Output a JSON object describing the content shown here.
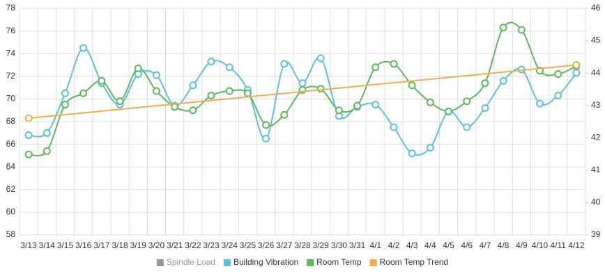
{
  "chart_data": {
    "type": "line",
    "categories": [
      "3/13",
      "3/14",
      "3/15",
      "3/16",
      "3/17",
      "3/18",
      "3/19",
      "3/20",
      "3/21",
      "3/22",
      "3/23",
      "3/24",
      "3/25",
      "3/26",
      "3/27",
      "3/28",
      "3/29",
      "3/30",
      "3/31",
      "4/1",
      "4/2",
      "4/3",
      "4/4",
      "4/5",
      "4/6",
      "4/7",
      "4/8",
      "4/9",
      "4/10",
      "4/11",
      "4/12"
    ],
    "ylim": [
      58,
      78
    ],
    "yticks": [
      58,
      60,
      62,
      64,
      66,
      68,
      70,
      72,
      74,
      76,
      78
    ],
    "y2lim": [
      39,
      46
    ],
    "y2ticks": [
      39,
      40,
      41,
      42,
      43,
      44,
      45,
      46
    ],
    "grid": true,
    "legend": "bottom",
    "series": [
      {
        "name": "Spindle Load",
        "color": "#999999",
        "axis": "y2",
        "hidden": true,
        "values": [
          null,
          null,
          null,
          null,
          null,
          null,
          null,
          null,
          null,
          null,
          null,
          null,
          null,
          null,
          null,
          null,
          null,
          null,
          null,
          null,
          null,
          null,
          null,
          null,
          null,
          null,
          null,
          null,
          null,
          null,
          null
        ]
      },
      {
        "name": "Building Vibration",
        "color": "#5bc0de",
        "values": [
          66.8,
          67.0,
          70.5,
          74.5,
          71.4,
          69.5,
          72.2,
          72.1,
          69.4,
          71.2,
          73.3,
          72.8,
          70.8,
          66.5,
          73.1,
          71.4,
          73.6,
          68.5,
          69.3,
          69.5,
          67.5,
          65.2,
          65.7,
          68.9,
          67.5,
          69.2,
          71.6,
          72.6,
          69.6,
          70.3,
          72.3
        ]
      },
      {
        "name": "Room Temp",
        "color": "#5cb85c",
        "values": [
          65.1,
          65.4,
          69.5,
          70.5,
          71.6,
          69.8,
          72.7,
          70.7,
          69.3,
          69.0,
          70.3,
          70.7,
          70.5,
          67.7,
          68.6,
          70.8,
          70.9,
          69.0,
          69.4,
          72.8,
          73.1,
          71.2,
          69.7,
          68.9,
          69.8,
          71.4,
          76.3,
          76.1,
          72.5,
          72.2,
          72.9
        ]
      },
      {
        "name": "Room Temp Trend",
        "color": "#f0ad4e",
        "smooth": false,
        "markers": "ends",
        "values": [
          68.3,
          68.46,
          68.61,
          68.77,
          68.93,
          69.08,
          69.24,
          69.4,
          69.55,
          69.71,
          69.87,
          70.02,
          70.18,
          70.34,
          70.49,
          70.65,
          70.81,
          70.96,
          71.12,
          71.28,
          71.43,
          71.59,
          71.75,
          71.9,
          72.06,
          72.22,
          72.37,
          72.53,
          72.69,
          72.84,
          73.0
        ]
      }
    ]
  }
}
